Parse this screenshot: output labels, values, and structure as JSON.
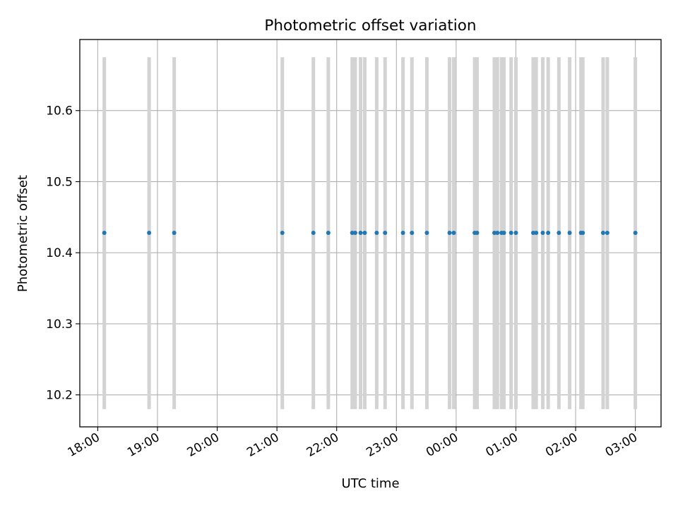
{
  "chart_data": {
    "type": "scatter",
    "title": "Photometric offset variation",
    "xlabel": "UTC time",
    "ylabel": "Photometric offset",
    "grid": true,
    "x_tick_labels": [
      "18:00",
      "19:00",
      "20:00",
      "21:00",
      "22:00",
      "23:00",
      "00:00",
      "01:00",
      "02:00",
      "03:00"
    ],
    "x_tick_hours": [
      18,
      19,
      20,
      21,
      22,
      23,
      24,
      25,
      26,
      27
    ],
    "xlim_hours": [
      17.7,
      27.43
    ],
    "y_tick_labels": [
      "10.2",
      "10.3",
      "10.4",
      "10.5",
      "10.6"
    ],
    "y_ticks": [
      10.2,
      10.3,
      10.4,
      10.5,
      10.6
    ],
    "ylim": [
      10.155,
      10.7
    ],
    "errorbar": {
      "lower": 10.18,
      "upper": 10.675,
      "color": "#d3d3d3"
    },
    "point_color": "#1f77b4",
    "series": [
      {
        "x_hours": [
          18.11,
          18.86,
          19.28,
          21.09,
          21.61,
          21.86,
          22.26,
          22.31,
          22.4,
          22.47,
          22.67,
          22.81,
          23.11,
          23.26,
          23.51,
          23.89,
          23.96,
          24.31,
          24.35,
          24.64,
          24.69,
          24.76,
          24.8,
          24.92,
          25.0,
          25.29,
          25.34,
          25.45,
          25.54,
          25.72,
          25.9,
          26.09,
          26.12,
          26.46,
          26.53,
          27.0
        ],
        "y": [
          10.428,
          10.428,
          10.428,
          10.428,
          10.428,
          10.428,
          10.428,
          10.428,
          10.428,
          10.428,
          10.428,
          10.428,
          10.428,
          10.428,
          10.428,
          10.428,
          10.428,
          10.428,
          10.428,
          10.428,
          10.428,
          10.428,
          10.428,
          10.428,
          10.428,
          10.428,
          10.428,
          10.428,
          10.428,
          10.428,
          10.428,
          10.428,
          10.428,
          10.428,
          10.428,
          10.428
        ]
      }
    ]
  }
}
